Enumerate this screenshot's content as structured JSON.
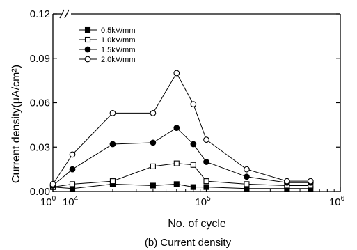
{
  "chart_data": {
    "type": "line",
    "caption": "(b) Current density",
    "xlabel": "No. of cycle",
    "ylabel": "Current density(μA/cm²)",
    "x_scale": "log (broken axis between 10^0 and 10^4)",
    "xlim": [
      1,
      1000000
    ],
    "ylim": [
      0,
      0.12
    ],
    "grid": false,
    "legend_position": "top-left",
    "x_ticks": [
      {
        "value": 1,
        "base": "10",
        "exp": "0"
      },
      {
        "value": 10000,
        "base": "10",
        "exp": "4"
      },
      {
        "value": 100000,
        "base": "10",
        "exp": "5"
      },
      {
        "value": 1000000,
        "base": "10",
        "exp": "6"
      }
    ],
    "y_ticks": [
      {
        "value": 0,
        "label": "0.00"
      },
      {
        "value": 0.03,
        "label": "0.03"
      },
      {
        "value": 0.06,
        "label": "0.06"
      },
      {
        "value": 0.09,
        "label": "0.09"
      },
      {
        "value": 0.12,
        "label": "0.12"
      }
    ],
    "series": [
      {
        "name": "0.5kV/mm",
        "marker": "filled-square",
        "x": [
          1,
          10000,
          20000,
          40000,
          60000,
          80000,
          100000,
          200000,
          400000,
          600000
        ],
        "y": [
          0.003,
          0.002,
          0.005,
          0.004,
          0.005,
          0.003,
          0.003,
          0.002,
          0.002,
          0.002
        ]
      },
      {
        "name": "1.0kV/mm",
        "marker": "open-square",
        "x": [
          1,
          10000,
          20000,
          40000,
          60000,
          80000,
          100000,
          200000,
          400000,
          600000
        ],
        "y": [
          0.003,
          0.005,
          0.007,
          0.017,
          0.019,
          0.018,
          0.007,
          0.005,
          0.004,
          0.004
        ]
      },
      {
        "name": "1.5kV/mm",
        "marker": "filled-circle",
        "x": [
          1,
          10000,
          20000,
          40000,
          60000,
          80000,
          100000,
          200000,
          400000,
          600000
        ],
        "y": [
          0.004,
          0.015,
          0.032,
          0.033,
          0.043,
          0.032,
          0.02,
          0.01,
          0.006,
          0.006
        ]
      },
      {
        "name": "2.0kV/mm",
        "marker": "open-circle",
        "x": [
          1,
          10000,
          20000,
          40000,
          60000,
          80000,
          100000,
          200000,
          400000,
          600000
        ],
        "y": [
          0.005,
          0.025,
          0.053,
          0.053,
          0.08,
          0.059,
          0.035,
          0.015,
          0.007,
          0.007
        ]
      }
    ]
  }
}
